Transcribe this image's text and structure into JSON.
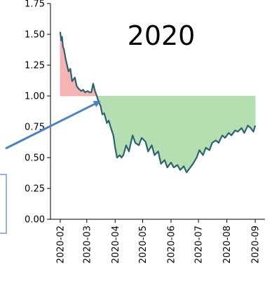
{
  "chart_data": {
    "type": "line",
    "title": "2020",
    "xlabel": "",
    "ylabel": "",
    "baseline": 1.0,
    "ylim": [
      0.0,
      1.75
    ],
    "xlim": [
      "2020-02-01",
      "2020-09-01"
    ],
    "yticks": [
      0.0,
      0.25,
      0.5,
      0.75,
      1.0,
      1.25,
      1.5,
      1.75
    ],
    "ytick_labels": [
      "0.00",
      "0.25",
      "0.50",
      "0.75",
      "1.00",
      "1.25",
      "1.50",
      "1.75"
    ],
    "xticks": [
      "2020-02-01",
      "2020-03-01",
      "2020-04-01",
      "2020-05-01",
      "2020-06-01",
      "2020-07-01",
      "2020-08-01",
      "2020-09-01"
    ],
    "xtick_labels": [
      "2020-02",
      "2020-03",
      "2020-04",
      "2020-05",
      "2020-06",
      "2020-07",
      "2020-08",
      "2020-09"
    ],
    "grid": false,
    "colors": {
      "line": "#2b6470",
      "above_fill": "#f4a6a6",
      "below_fill": "#a8d8a3",
      "arrow": "#4f81bd",
      "callout_border": "#4f81bd"
    },
    "series": [
      {
        "x": [
          "2020-02-01",
          "2020-02-02",
          "2020-02-03",
          "2020-02-04",
          "2020-02-05",
          "2020-02-07",
          "2020-02-10",
          "2020-02-12",
          "2020-02-14",
          "2020-02-17",
          "2020-02-19",
          "2020-02-21",
          "2020-02-24",
          "2020-02-26",
          "2020-02-28",
          "2020-03-02",
          "2020-03-04",
          "2020-03-06",
          "2020-03-08",
          "2020-03-10",
          "2020-03-12",
          "2020-03-14",
          "2020-03-16",
          "2020-03-18",
          "2020-03-20",
          "2020-03-23",
          "2020-03-25",
          "2020-03-27",
          "2020-03-30",
          "2020-04-01",
          "2020-04-03",
          "2020-04-06",
          "2020-04-08",
          "2020-04-10",
          "2020-04-13",
          "2020-04-16",
          "2020-04-20",
          "2020-04-23",
          "2020-04-27",
          "2020-04-30",
          "2020-05-04",
          "2020-05-07",
          "2020-05-11",
          "2020-05-14",
          "2020-05-18",
          "2020-05-21",
          "2020-05-25",
          "2020-05-28",
          "2020-06-01",
          "2020-06-04",
          "2020-06-08",
          "2020-06-11",
          "2020-06-15",
          "2020-06-18",
          "2020-06-22",
          "2020-06-25",
          "2020-06-29",
          "2020-07-02",
          "2020-07-06",
          "2020-07-09",
          "2020-07-13",
          "2020-07-16",
          "2020-07-20",
          "2020-07-23",
          "2020-07-27",
          "2020-07-30",
          "2020-08-03",
          "2020-08-06",
          "2020-08-10",
          "2020-08-13",
          "2020-08-17",
          "2020-08-20",
          "2020-08-24",
          "2020-08-27",
          "2020-08-30",
          "2020-09-01"
        ],
        "y": [
          1.52,
          1.45,
          1.48,
          1.4,
          1.38,
          1.3,
          1.2,
          1.22,
          1.12,
          1.15,
          1.08,
          1.06,
          1.04,
          1.05,
          1.03,
          1.04,
          1.03,
          1.03,
          1.1,
          1.04,
          1.0,
          0.95,
          0.92,
          0.85,
          0.86,
          0.78,
          0.8,
          0.75,
          0.68,
          0.58,
          0.5,
          0.52,
          0.5,
          0.52,
          0.6,
          0.55,
          0.68,
          0.62,
          0.6,
          0.66,
          0.63,
          0.55,
          0.6,
          0.52,
          0.55,
          0.45,
          0.48,
          0.42,
          0.46,
          0.42,
          0.44,
          0.4,
          0.43,
          0.38,
          0.42,
          0.45,
          0.5,
          0.56,
          0.52,
          0.58,
          0.56,
          0.62,
          0.64,
          0.62,
          0.68,
          0.66,
          0.7,
          0.68,
          0.72,
          0.71,
          0.74,
          0.7,
          0.76,
          0.74,
          0.71,
          0.76
        ]
      }
    ]
  }
}
